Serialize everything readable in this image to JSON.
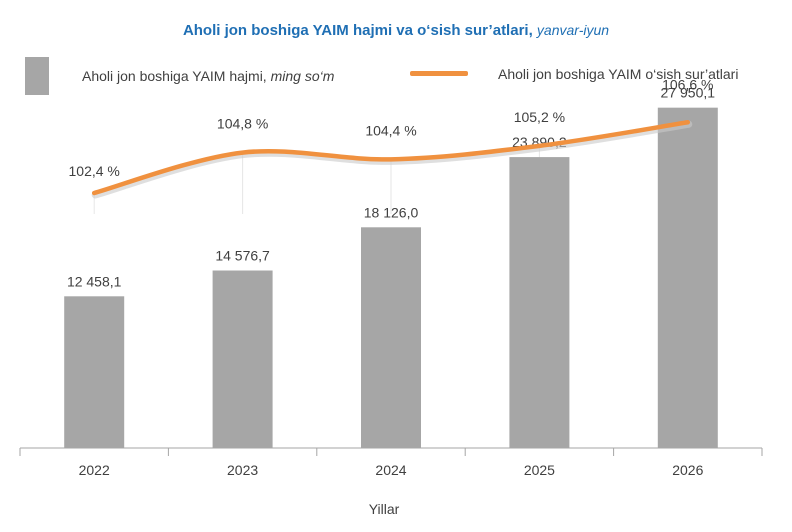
{
  "title": {
    "main": "Aholi jon boshiga YAIM hajmi va o‘sish sur’atlari",
    "suffix": "yanvar-iyun"
  },
  "legend": {
    "bar_label": "Aholi jon boshiga YAIM hajmi,",
    "bar_unit": "ming so‘m",
    "line_label": "Aholi jon boshiga YAIM o‘sish sur’atlari"
  },
  "colors": {
    "bar": "#a6a6a6",
    "line": "#f0913f",
    "title": "#1f6fb4",
    "text": "#404040"
  },
  "chart_data": {
    "type": "bar",
    "categories": [
      "2022",
      "2023",
      "2024",
      "2025",
      "2026"
    ],
    "xlabel": "Yillar",
    "ylabel": "",
    "series": [
      {
        "name": "Aholi jon boshiga YAIM hajmi, ming so‘m",
        "type": "bar",
        "values": [
          12458.1,
          14576.7,
          18126.0,
          23890.2,
          27950.1
        ],
        "labels": [
          "12 458,1",
          "14 576,7",
          "18 126,0",
          "23 890,2",
          "27 950,1"
        ],
        "ylim": [
          0,
          34000
        ]
      },
      {
        "name": "Aholi jon boshiga YAIM o‘sish sur’atlari",
        "type": "line",
        "smooth": true,
        "values": [
          102.4,
          104.8,
          104.4,
          105.2,
          106.6
        ],
        "labels": [
          "102,4 %",
          "104,8 %",
          "104,4 %",
          "105,2 %",
          "106,6 %"
        ],
        "ylim": [
          98.6,
          110.0
        ]
      }
    ],
    "grid": false,
    "legend_position": "top"
  }
}
